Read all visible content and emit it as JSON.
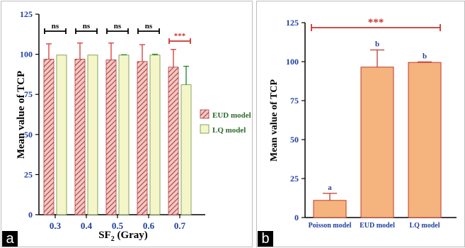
{
  "panels": [
    {
      "letter": "a"
    },
    {
      "letter": "b"
    }
  ],
  "colors": {
    "axis_blue": "#1f3f9f",
    "eud_fill": "#f2c9c4",
    "eud_hatch": "#b33a3a",
    "lq_fill": "#f4f6c9",
    "lq_error": "#2f8a3a",
    "eud_error": "#d9453f",
    "sig_red": "#c8352b",
    "bar_orange": "#f5b37e",
    "bar_orange_edge": "#c0392b",
    "letter_blue": "#2a3c9a"
  },
  "chart_data": [
    {
      "type": "bar",
      "xlabel_main": "SF",
      "xlabel_sub": "2",
      "xlabel_rest": " (Gray)",
      "ylabel": "Mean value of TCP",
      "categories": [
        "0.3",
        "0.4",
        "0.5",
        "0.6",
        "0.7"
      ],
      "ylim": [
        0,
        125
      ],
      "yticks": [
        "0",
        "25",
        "50",
        "75",
        "100",
        "125"
      ],
      "series": [
        {
          "name": "EUD model",
          "values": [
            97,
            97,
            96.5,
            95.5,
            92
          ],
          "errors": [
            9.5,
            10,
            10.5,
            10.5,
            11
          ]
        },
        {
          "name": "LQ model",
          "values": [
            99.5,
            99.5,
            99.5,
            99.5,
            81
          ],
          "errors": [
            0,
            0,
            0.2,
            0.5,
            11.5
          ]
        }
      ],
      "significance": [
        "ns",
        "ns",
        "ns",
        "ns",
        "***"
      ],
      "legend_position": "right"
    },
    {
      "type": "bar",
      "ylabel": "Mean value of TCP",
      "categories": [
        "Poisson model",
        "EUD model",
        "LQ model"
      ],
      "ylim": [
        0,
        125
      ],
      "yticks": [
        "0",
        "25",
        "50",
        "75",
        "100",
        "125"
      ],
      "values": [
        11,
        96.5,
        99.5
      ],
      "errors": [
        4.5,
        11,
        0.3
      ],
      "group_letters": [
        "a",
        "b",
        "b"
      ],
      "significance": "***"
    }
  ]
}
